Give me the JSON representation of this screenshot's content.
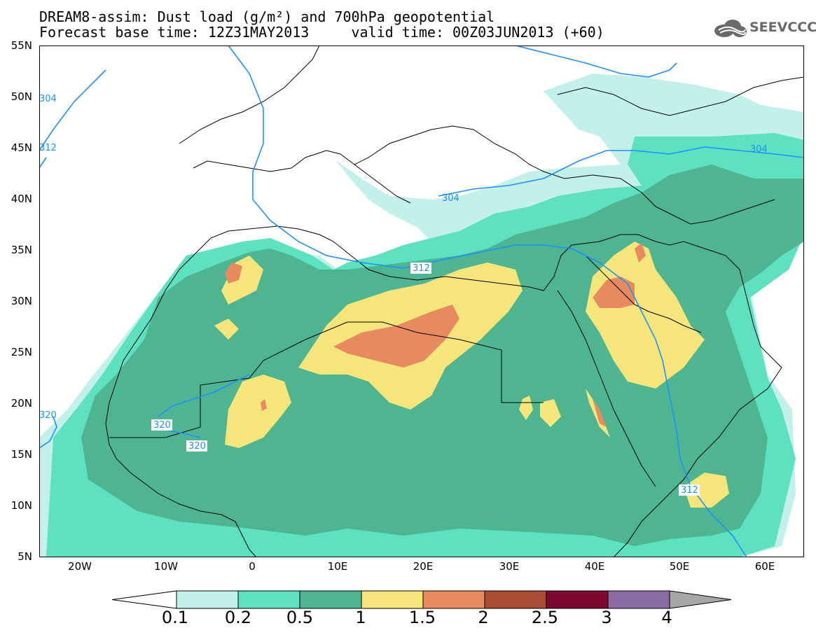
{
  "title": {
    "line1": "DREAM8-assim: Dust load (g/m²) and 700hPa geopotential",
    "line2": "Forecast base time: 12Z31MAY2013     valid time: 00Z03JUN2013 (+60)"
  },
  "logo_text": "SEEVCCC",
  "lat_labels": [
    "55N",
    "50N",
    "45N",
    "40N",
    "35N",
    "30N",
    "25N",
    "20N",
    "15N",
    "10N",
    "5N"
  ],
  "lon_labels": [
    "20W",
    "10W",
    "0",
    "10E",
    "20E",
    "30E",
    "40E",
    "50E",
    "60E"
  ],
  "contour_labels": [
    "304",
    "312",
    "320",
    "320",
    "312",
    "320",
    "304",
    "304",
    "312"
  ],
  "colorbar": {
    "levels": [
      "0.1",
      "0.2",
      "0.5",
      "1",
      "1.5",
      "2",
      "2.5",
      "3",
      "4"
    ],
    "colors": [
      "#c3f0ea",
      "#5de1c0",
      "#4fb590",
      "#f6e57b",
      "#e88a5f",
      "#a84c34",
      "#7d0a2e",
      "#8a6ca3",
      "#a7a7a7"
    ]
  },
  "colors": {
    "ocean_and_land": "#ffffff",
    "contour_line": "#1e90ff",
    "coastline": "#000000"
  }
}
